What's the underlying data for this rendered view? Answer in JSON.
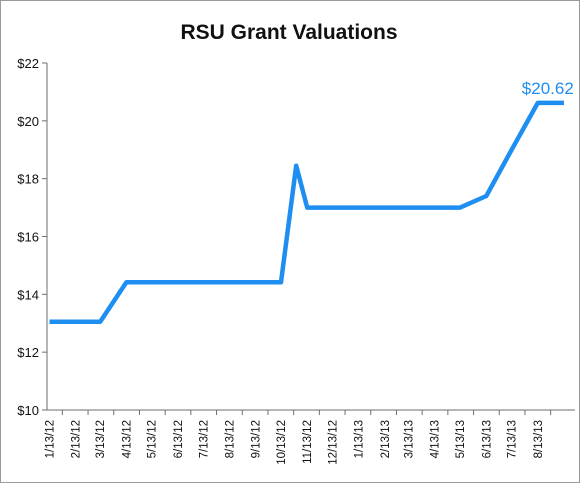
{
  "chart_data": {
    "type": "line",
    "title": "RSU Grant Valuations",
    "xlabel": "",
    "ylabel": "",
    "ylim": [
      10,
      22
    ],
    "yticks": [
      10,
      12,
      14,
      16,
      18,
      20,
      22
    ],
    "ytick_labels": [
      "$10",
      "$12",
      "$14",
      "$16",
      "$18",
      "$20",
      "$22"
    ],
    "categories": [
      "1/13/12",
      "2/13/12",
      "3/13/12",
      "4/13/12",
      "5/13/12",
      "6/13/12",
      "7/13/12",
      "8/13/12",
      "9/13/12",
      "10/13/12",
      "11/13/12",
      "12/13/12",
      "1/13/13",
      "2/13/13",
      "3/13/13",
      "4/13/13",
      "5/13/13",
      "6/13/13",
      "7/13/13",
      "8/13/13"
    ],
    "series": [
      {
        "color": "#1f8ef1",
        "x": [
          "1/13/12",
          "2/13/12",
          "3/13/12",
          "4/13/12",
          "5/13/12",
          "6/13/12",
          "7/13/12",
          "8/13/12",
          "9/13/12",
          "10/13/12",
          "10/31/12",
          "11/13/12",
          "12/13/12",
          "1/13/13",
          "2/13/13",
          "3/13/13",
          "4/13/13",
          "5/13/13",
          "6/13/13",
          "7/13/13",
          "8/13/13",
          "9/13/13"
        ],
        "values": [
          13.05,
          13.05,
          13.05,
          14.42,
          14.42,
          14.42,
          14.42,
          14.42,
          14.42,
          14.42,
          18.45,
          17.0,
          17.0,
          17.0,
          17.0,
          17.0,
          17.0,
          17.0,
          17.4,
          19.0,
          20.62,
          20.62
        ]
      }
    ],
    "annotation": {
      "text": "$20.62",
      "at": "8/13/13",
      "value": 20.62,
      "color": "#1f8ef1"
    },
    "grid": false,
    "legend": "none"
  }
}
